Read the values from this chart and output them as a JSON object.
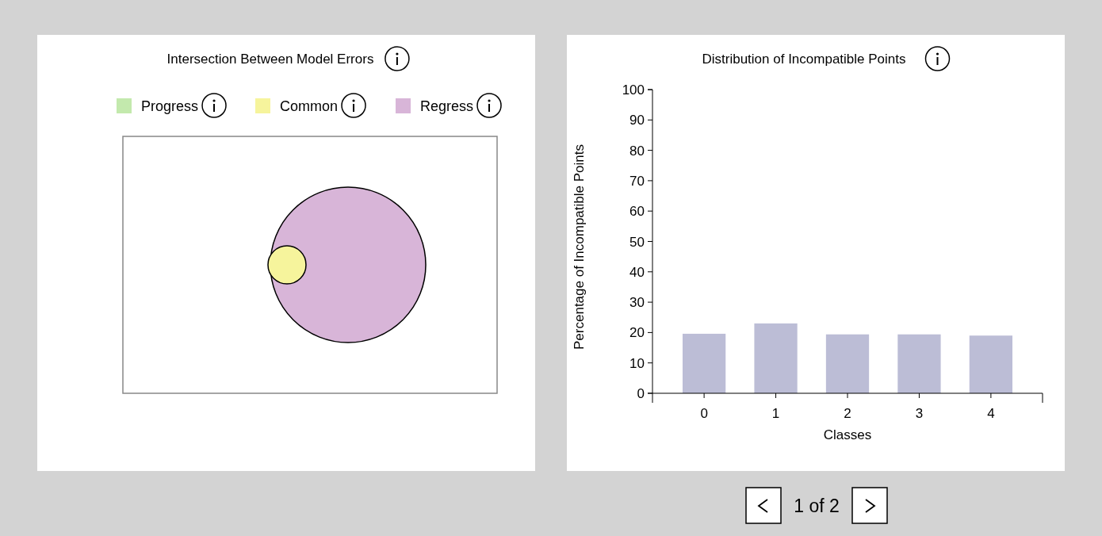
{
  "chart_data": [
    {
      "type": "other",
      "title": "Intersection Between Model Errors",
      "categories": [
        "Progress",
        "Common",
        "Regress"
      ],
      "colors": [
        "#c3e9ad",
        "#f6f49c",
        "#d8b5d8"
      ]
    },
    {
      "type": "bar",
      "title": "Distribution of Incompatible Points",
      "xlabel": "Classes",
      "ylabel": "Percentage of Incompatible Points",
      "categories": [
        "0",
        "1",
        "2",
        "3",
        "4"
      ],
      "values": [
        19.6,
        23.0,
        19.4,
        19.4,
        19.0
      ],
      "color": "#bcbdd6",
      "ylim": [
        0,
        100
      ],
      "yticks": [
        0,
        10,
        20,
        30,
        40,
        50,
        60,
        70,
        80,
        90,
        100
      ],
      "grid": false,
      "annotations": [
        "1 of 2"
      ]
    }
  ]
}
